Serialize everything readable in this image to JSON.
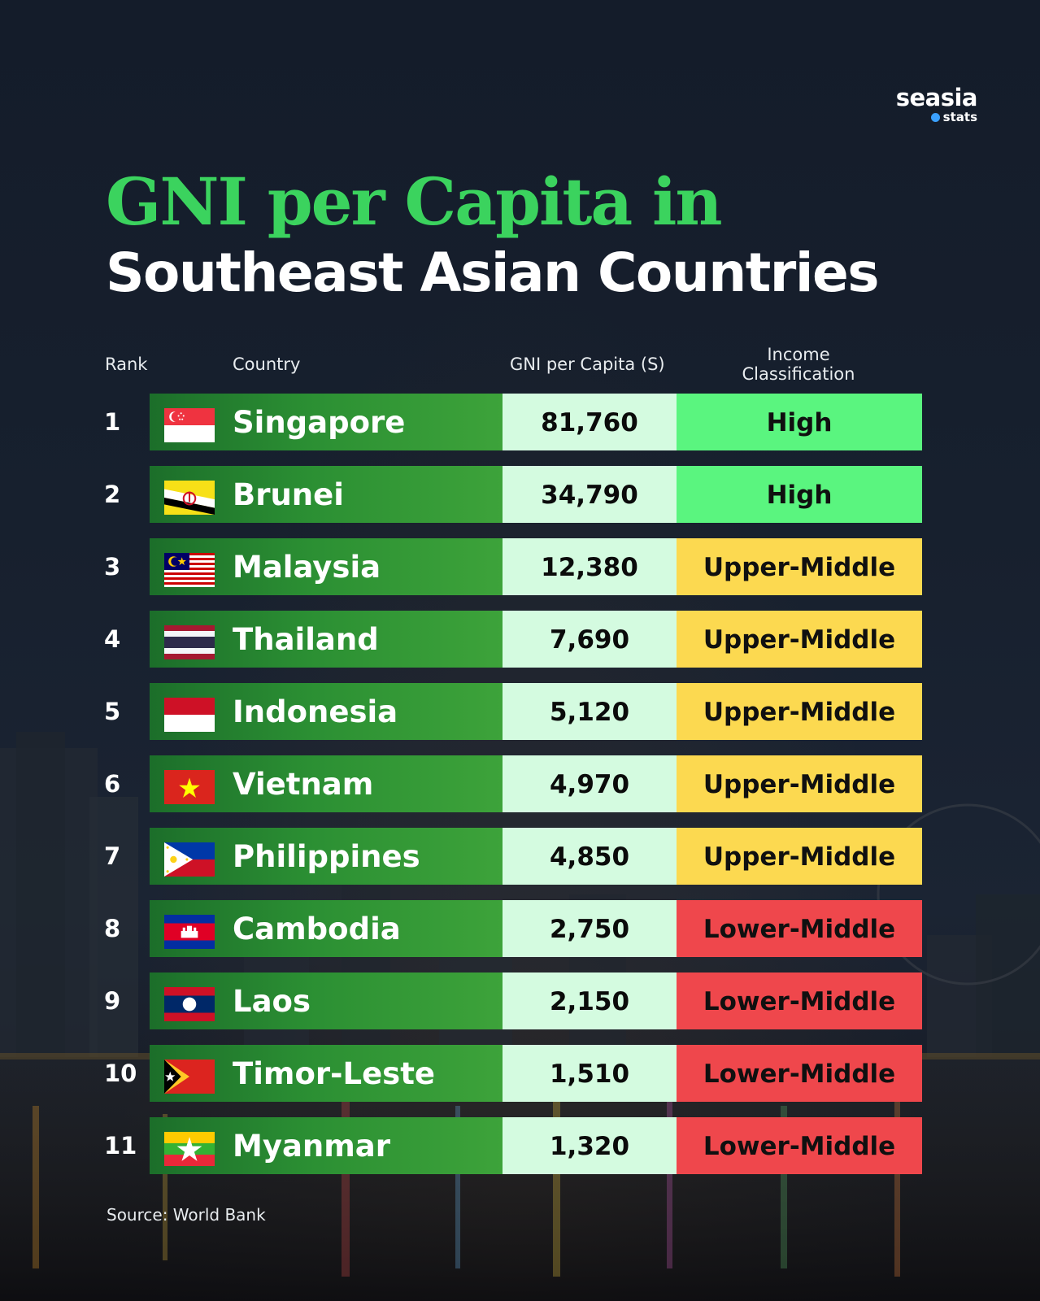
{
  "brand": {
    "name": "seasia",
    "sub": "stats"
  },
  "title_line1": "GNI per Capita in",
  "title_line2": "Southeast Asian Countries",
  "headers": {
    "rank": "Rank",
    "country": "Country",
    "gni": "GNI per Capita (S)",
    "classification_line1": "Income",
    "classification_line2": "Classification"
  },
  "source": "Source: World Bank",
  "colors": {
    "High": "#5af57f",
    "Upper-Middle": "#fcd950",
    "Lower-Middle": "#ef474c"
  },
  "chart_data": {
    "type": "table",
    "columns": [
      "Rank",
      "Country",
      "GNI per Capita (S)",
      "Income Classification"
    ],
    "rows": [
      {
        "rank": "1",
        "country": "Singapore",
        "flag": "flag-singapore",
        "gni": "81,760",
        "classification": "High"
      },
      {
        "rank": "2",
        "country": "Brunei",
        "flag": "flag-brunei",
        "gni": "34,790",
        "classification": "High"
      },
      {
        "rank": "3",
        "country": "Malaysia",
        "flag": "flag-malaysia",
        "gni": "12,380",
        "classification": "Upper-Middle"
      },
      {
        "rank": "4",
        "country": "Thailand",
        "flag": "flag-thailand",
        "gni": "7,690",
        "classification": "Upper-Middle"
      },
      {
        "rank": "5",
        "country": "Indonesia",
        "flag": "flag-indonesia",
        "gni": "5,120",
        "classification": "Upper-Middle"
      },
      {
        "rank": "6",
        "country": "Vietnam",
        "flag": "flag-vietnam",
        "gni": "4,970",
        "classification": "Upper-Middle"
      },
      {
        "rank": "7",
        "country": "Philippines",
        "flag": "flag-philippines",
        "gni": "4,850",
        "classification": "Upper-Middle"
      },
      {
        "rank": "8",
        "country": "Cambodia",
        "flag": "flag-cambodia",
        "gni": "2,750",
        "classification": "Lower-Middle"
      },
      {
        "rank": "9",
        "country": "Laos",
        "flag": "flag-laos",
        "gni": "2,150",
        "classification": "Lower-Middle"
      },
      {
        "rank": "10",
        "country": "Timor-Leste",
        "flag": "flag-timor-leste",
        "gni": "1,510",
        "classification": "Lower-Middle"
      },
      {
        "rank": "11",
        "country": "Myanmar",
        "flag": "flag-myanmar",
        "gni": "1,320",
        "classification": "Lower-Middle"
      }
    ]
  }
}
